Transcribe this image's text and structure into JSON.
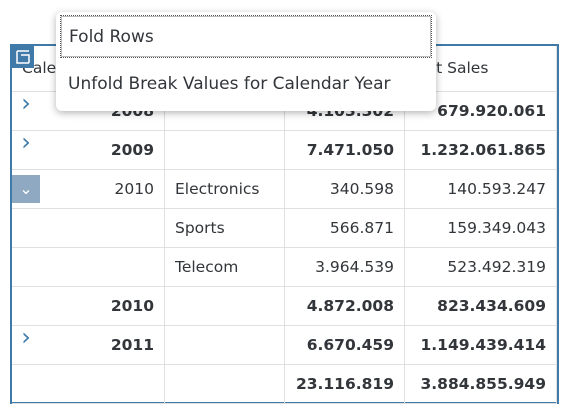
{
  "table": {
    "header": [
      "Calendar Year",
      null,
      null,
      "Net Sales"
    ],
    "rows": [
      {
        "cells": [
          "2008",
          null,
          "4.103.302",
          "679.920.061"
        ],
        "bold": true,
        "expander": "collapsed"
      },
      {
        "cells": [
          "2009",
          null,
          "7.471.050",
          "1.232.061.865"
        ],
        "bold": true,
        "expander": "collapsed"
      },
      {
        "cells": [
          "2010",
          "Electronics",
          "340.598",
          "140.593.247"
        ],
        "bold": false,
        "expander": "expanded"
      },
      {
        "cells": [
          null,
          "Sports",
          "566.871",
          "159.349.043"
        ],
        "bold": false
      },
      {
        "cells": [
          null,
          "Telecom",
          "3.964.539",
          "523.492.319"
        ],
        "bold": false
      },
      {
        "cells": [
          "2010",
          null,
          "4.872.008",
          "823.434.609"
        ],
        "bold": true
      },
      {
        "cells": [
          "2011",
          null,
          "6.670.459",
          "1.149.439.414"
        ],
        "bold": true,
        "expander": "collapsed"
      },
      {
        "cells": [
          null,
          null,
          "23.116.819",
          "3.884.855.949"
        ],
        "bold": true
      }
    ]
  },
  "menu": {
    "items": [
      "Fold Rows",
      "Unfold Break Values for Calendar Year"
    ]
  }
}
